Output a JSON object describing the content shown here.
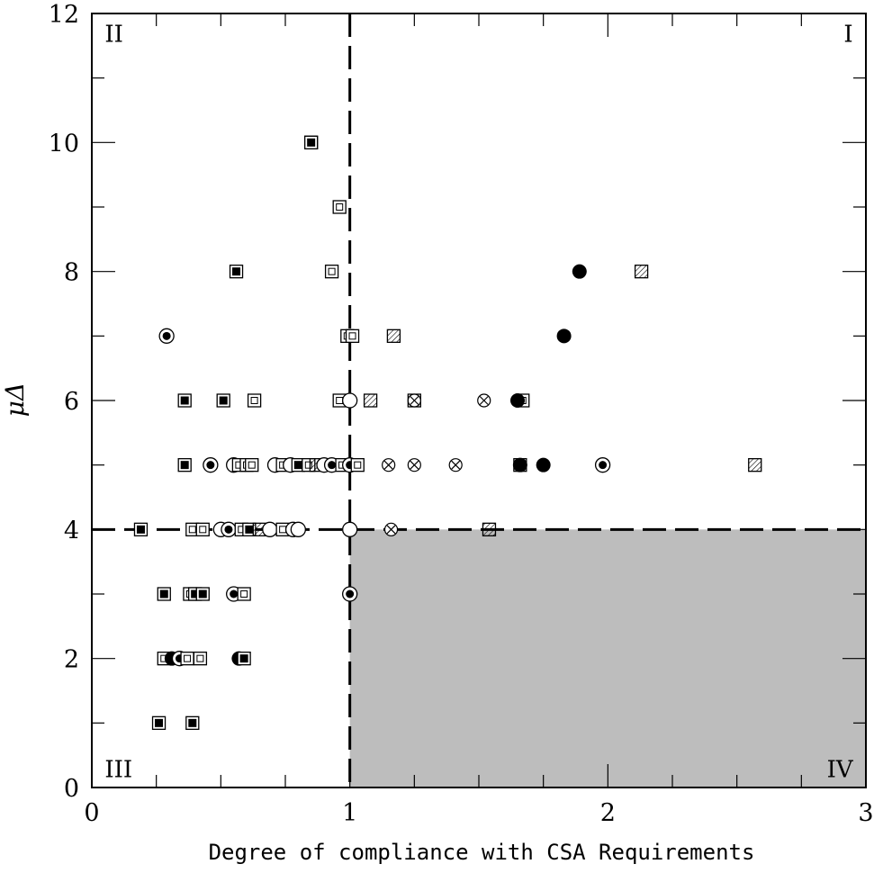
{
  "chart_data": {
    "type": "scatter",
    "title": "",
    "xlabel": "Degree of compliance with CSA Requirements",
    "ylabel": "μΔ",
    "xlim": [
      0,
      3
    ],
    "ylim": [
      0,
      12
    ],
    "x_ticks": [
      0,
      1,
      2,
      3
    ],
    "x_tick_labels": [
      "0",
      "1",
      "2",
      "3"
    ],
    "y_ticks": [
      0,
      2,
      4,
      6,
      8,
      10,
      12
    ],
    "y_tick_labels": [
      "0",
      "2",
      "4",
      "6",
      "8",
      "10",
      "12"
    ],
    "grid": false,
    "reference_lines": {
      "x": 1,
      "y": 4,
      "style": "dashed"
    },
    "shaded_region": {
      "x": [
        1,
        3
      ],
      "y": [
        0,
        4
      ],
      "color": "#bdbdbd"
    },
    "quadrant_labels": [
      {
        "label": "I",
        "x": 2.95,
        "y": 11.7,
        "anchor": "end"
      },
      {
        "label": "II",
        "x": 0.05,
        "y": 11.7,
        "anchor": "start"
      },
      {
        "label": "III",
        "x": 0.05,
        "y": 0.3,
        "anchor": "start"
      },
      {
        "label": "IV",
        "x": 2.95,
        "y": 0.3,
        "anchor": "end"
      }
    ],
    "marker_types": [
      "filled-square",
      "open-square",
      "hatched-square",
      "dotted-circle",
      "open-circle",
      "crossed-circle",
      "filled-circle"
    ],
    "points": [
      {
        "x": 0.85,
        "y": 10,
        "marker": "hatched-square"
      },
      {
        "x": 0.85,
        "y": 10,
        "marker": "filled-square"
      },
      {
        "x": 0.96,
        "y": 9,
        "marker": "open-square"
      },
      {
        "x": 0.56,
        "y": 8,
        "marker": "filled-square"
      },
      {
        "x": 0.93,
        "y": 8,
        "marker": "open-square"
      },
      {
        "x": 1.89,
        "y": 8,
        "marker": "filled-circle"
      },
      {
        "x": 2.13,
        "y": 8,
        "marker": "hatched-square"
      },
      {
        "x": 0.29,
        "y": 7,
        "marker": "dotted-circle"
      },
      {
        "x": 0.99,
        "y": 7,
        "marker": "open-square"
      },
      {
        "x": 1.01,
        "y": 7,
        "marker": "open-square"
      },
      {
        "x": 1.17,
        "y": 7,
        "marker": "hatched-square"
      },
      {
        "x": 1.83,
        "y": 7,
        "marker": "filled-circle"
      },
      {
        "x": 0.36,
        "y": 6,
        "marker": "filled-square"
      },
      {
        "x": 0.51,
        "y": 6,
        "marker": "filled-square"
      },
      {
        "x": 0.63,
        "y": 6,
        "marker": "open-square"
      },
      {
        "x": 0.96,
        "y": 6,
        "marker": "open-square"
      },
      {
        "x": 1.0,
        "y": 6,
        "marker": "open-circle"
      },
      {
        "x": 1.08,
        "y": 6,
        "marker": "hatched-square"
      },
      {
        "x": 1.25,
        "y": 6,
        "marker": "open-square"
      },
      {
        "x": 1.25,
        "y": 6,
        "marker": "crossed-circle"
      },
      {
        "x": 1.52,
        "y": 6,
        "marker": "crossed-circle"
      },
      {
        "x": 1.67,
        "y": 6,
        "marker": "open-square"
      },
      {
        "x": 1.65,
        "y": 6,
        "marker": "filled-circle"
      },
      {
        "x": 0.36,
        "y": 5,
        "marker": "filled-square"
      },
      {
        "x": 0.46,
        "y": 5,
        "marker": "dotted-circle"
      },
      {
        "x": 0.55,
        "y": 5,
        "marker": "open-circle"
      },
      {
        "x": 0.57,
        "y": 5,
        "marker": "open-square"
      },
      {
        "x": 0.6,
        "y": 5,
        "marker": "open-square"
      },
      {
        "x": 0.62,
        "y": 5,
        "marker": "open-square"
      },
      {
        "x": 0.71,
        "y": 5,
        "marker": "open-circle"
      },
      {
        "x": 0.74,
        "y": 5,
        "marker": "open-square"
      },
      {
        "x": 0.77,
        "y": 5,
        "marker": "open-circle"
      },
      {
        "x": 0.8,
        "y": 5,
        "marker": "filled-square"
      },
      {
        "x": 0.84,
        "y": 5,
        "marker": "open-square"
      },
      {
        "x": 0.87,
        "y": 5,
        "marker": "hatched-square"
      },
      {
        "x": 0.9,
        "y": 5,
        "marker": "open-circle"
      },
      {
        "x": 0.93,
        "y": 5,
        "marker": "dotted-circle"
      },
      {
        "x": 0.97,
        "y": 5,
        "marker": "open-square"
      },
      {
        "x": 1.0,
        "y": 5,
        "marker": "dotted-circle"
      },
      {
        "x": 1.03,
        "y": 5,
        "marker": "open-square"
      },
      {
        "x": 1.15,
        "y": 5,
        "marker": "crossed-circle"
      },
      {
        "x": 1.25,
        "y": 5,
        "marker": "crossed-circle"
      },
      {
        "x": 1.41,
        "y": 5,
        "marker": "crossed-circle"
      },
      {
        "x": 1.66,
        "y": 5,
        "marker": "open-square"
      },
      {
        "x": 1.66,
        "y": 5,
        "marker": "filled-circle"
      },
      {
        "x": 1.75,
        "y": 5,
        "marker": "filled-circle"
      },
      {
        "x": 1.98,
        "y": 5,
        "marker": "dotted-circle"
      },
      {
        "x": 2.57,
        "y": 5,
        "marker": "hatched-square"
      },
      {
        "x": 0.19,
        "y": 4,
        "marker": "filled-square"
      },
      {
        "x": 0.39,
        "y": 4,
        "marker": "open-square"
      },
      {
        "x": 0.43,
        "y": 4,
        "marker": "open-square"
      },
      {
        "x": 0.5,
        "y": 4,
        "marker": "open-circle"
      },
      {
        "x": 0.53,
        "y": 4,
        "marker": "dotted-circle"
      },
      {
        "x": 0.58,
        "y": 4,
        "marker": "open-square"
      },
      {
        "x": 0.61,
        "y": 4,
        "marker": "filled-square"
      },
      {
        "x": 0.65,
        "y": 4,
        "marker": "hatched-square"
      },
      {
        "x": 0.69,
        "y": 4,
        "marker": "open-circle"
      },
      {
        "x": 0.74,
        "y": 4,
        "marker": "open-square"
      },
      {
        "x": 0.78,
        "y": 4,
        "marker": "open-circle"
      },
      {
        "x": 0.8,
        "y": 4,
        "marker": "open-circle"
      },
      {
        "x": 1.0,
        "y": 4,
        "marker": "open-circle"
      },
      {
        "x": 1.16,
        "y": 4,
        "marker": "crossed-circle"
      },
      {
        "x": 1.54,
        "y": 4,
        "marker": "hatched-square"
      },
      {
        "x": 0.28,
        "y": 3,
        "marker": "filled-square"
      },
      {
        "x": 0.38,
        "y": 3,
        "marker": "open-square"
      },
      {
        "x": 0.4,
        "y": 3,
        "marker": "filled-square"
      },
      {
        "x": 0.43,
        "y": 3,
        "marker": "filled-square"
      },
      {
        "x": 0.55,
        "y": 3,
        "marker": "dotted-circle"
      },
      {
        "x": 0.59,
        "y": 3,
        "marker": "open-square"
      },
      {
        "x": 1.0,
        "y": 3,
        "marker": "dotted-circle"
      },
      {
        "x": 0.28,
        "y": 2,
        "marker": "open-square"
      },
      {
        "x": 0.31,
        "y": 2,
        "marker": "filled-circle"
      },
      {
        "x": 0.34,
        "y": 2,
        "marker": "dotted-circle"
      },
      {
        "x": 0.37,
        "y": 2,
        "marker": "open-square"
      },
      {
        "x": 0.42,
        "y": 2,
        "marker": "open-square"
      },
      {
        "x": 0.57,
        "y": 2,
        "marker": "filled-circle"
      },
      {
        "x": 0.59,
        "y": 2,
        "marker": "filled-square"
      },
      {
        "x": 0.26,
        "y": 1,
        "marker": "filled-square"
      },
      {
        "x": 0.39,
        "y": 1,
        "marker": "filled-square"
      }
    ]
  }
}
